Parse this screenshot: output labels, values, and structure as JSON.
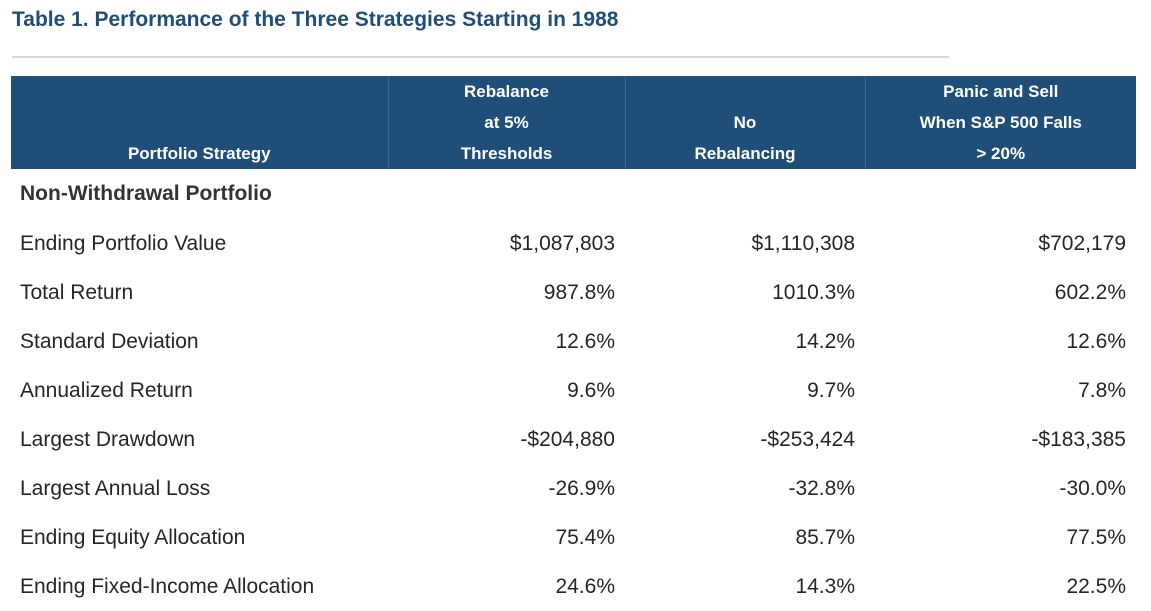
{
  "title": "Table 1. Performance of the Three Strategies Starting in 1988",
  "header": {
    "col0": [
      "Portfolio Strategy"
    ],
    "col1": [
      "Rebalance",
      "at 5%",
      "Thresholds"
    ],
    "col2": [
      "No",
      "Rebalancing"
    ],
    "col3": [
      "Panic and Sell",
      "When S&P 500 Falls",
      "> 20%"
    ]
  },
  "section_title": "Non-Withdrawal Portfolio",
  "rows": [
    {
      "label": "Ending Portfolio Value",
      "v1": "$1,087,803",
      "v2": "$1,110,308",
      "v3": "$702,179"
    },
    {
      "label": "Total Return",
      "v1": "987.8%",
      "v2": "1010.3%",
      "v3": "602.2%"
    },
    {
      "label": "Standard Deviation",
      "v1": "12.6%",
      "v2": "14.2%",
      "v3": "12.6%"
    },
    {
      "label": "Annualized Return",
      "v1": "9.6%",
      "v2": "9.7%",
      "v3": "7.8%"
    },
    {
      "label": "Largest Drawdown",
      "v1": "-$204,880",
      "v2": "-$253,424",
      "v3": "-$183,385"
    },
    {
      "label": "Largest Annual Loss",
      "v1": "-26.9%",
      "v2": "-32.8%",
      "v3": "-30.0%"
    },
    {
      "label": "Ending Equity Allocation",
      "v1": "75.4%",
      "v2": "85.7%",
      "v3": "77.5%"
    },
    {
      "label": "Ending Fixed-Income Allocation",
      "v1": "24.6%",
      "v2": "14.3%",
      "v3": "22.5%"
    }
  ],
  "colors": {
    "title": "#1f4e79",
    "header_bg": "#1f4e79",
    "header_text": "#ffffff",
    "body_text": "#262626"
  }
}
